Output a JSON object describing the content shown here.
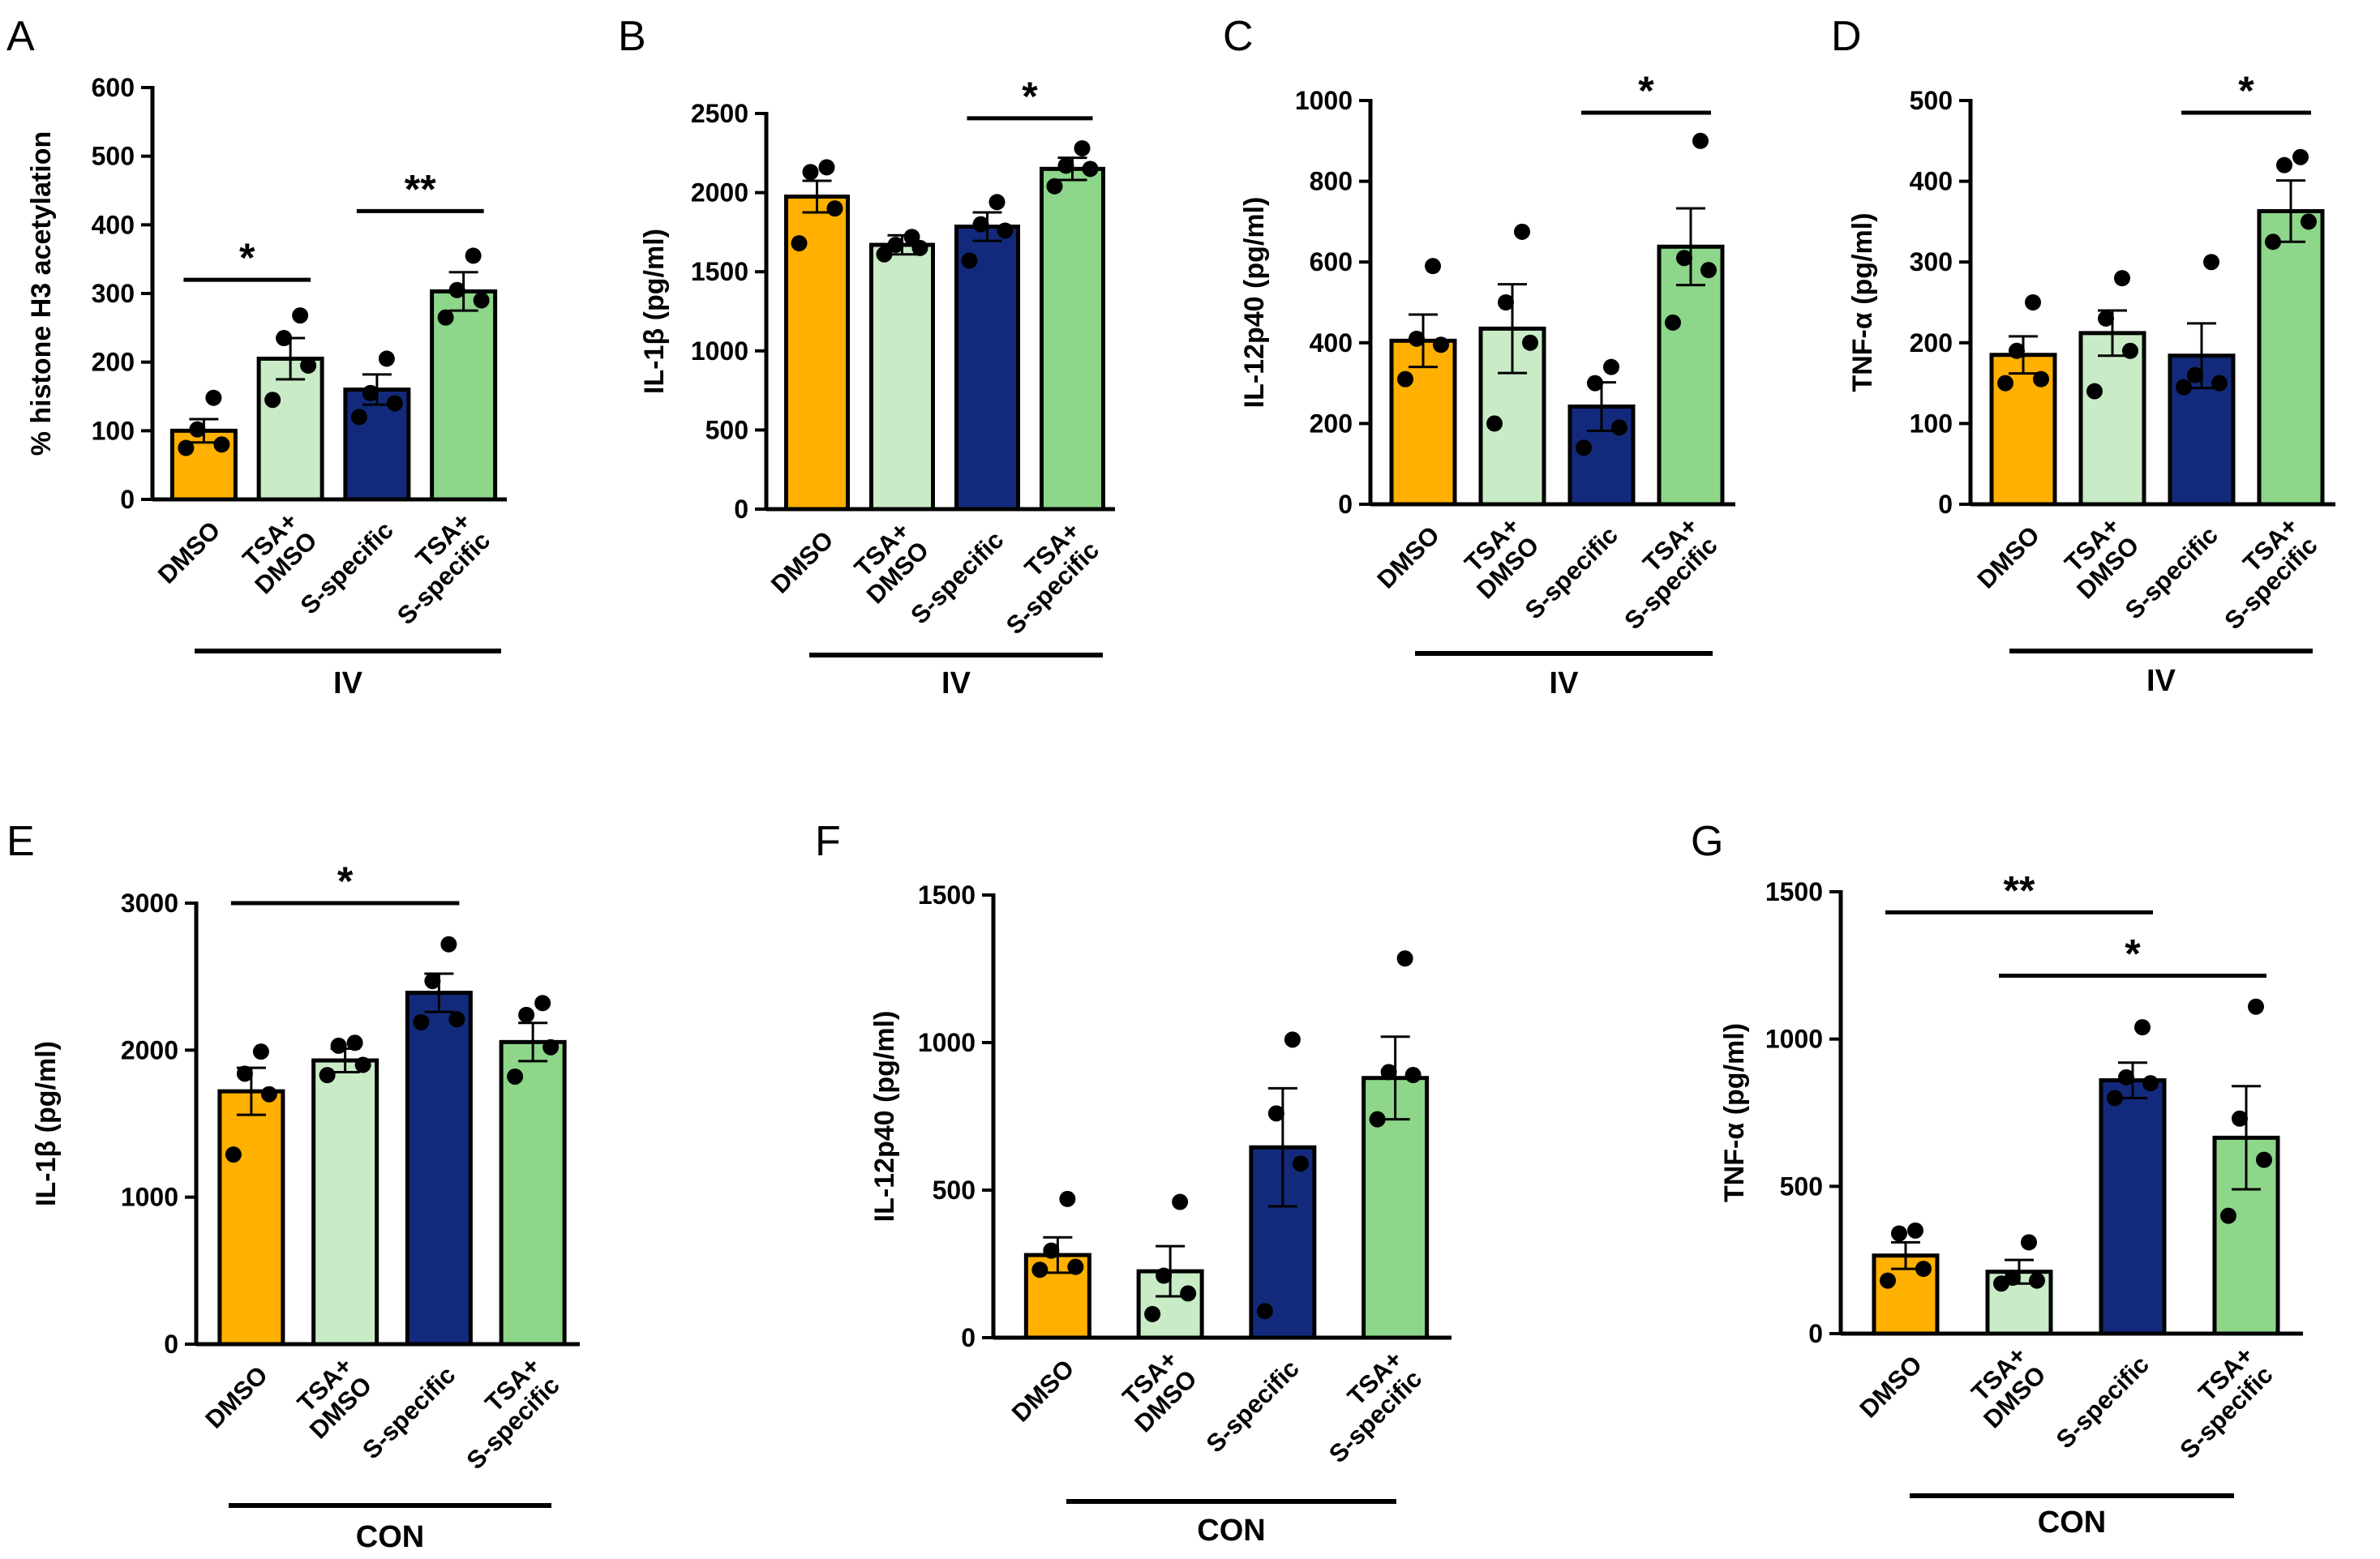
{
  "colors": {
    "DMSO": "#ffb000",
    "TSA_DMSO": "#c9ecc6",
    "S_specific": "#132a7c",
    "TSA_S_specific": "#8dd68a",
    "stroke": "#000000"
  },
  "chart_data": [
    {
      "panel": "A",
      "type": "bar",
      "group_label": "IV",
      "ylabel": "% histone H3 acetylation",
      "ylim": [
        0,
        600
      ],
      "yticks": [
        0,
        100,
        200,
        300,
        400,
        500,
        600
      ],
      "categories": [
        [
          "DMSO"
        ],
        [
          "TSA+",
          "DMSO"
        ],
        [
          "S-specific"
        ],
        [
          "TSA+",
          "S-specific"
        ]
      ],
      "values": [
        100,
        205,
        160,
        303
      ],
      "sem": [
        17,
        30,
        22,
        28
      ],
      "points": [
        [
          75,
          80,
          102,
          148
        ],
        [
          145,
          195,
          235,
          268
        ],
        [
          120,
          140,
          155,
          205
        ],
        [
          265,
          290,
          305,
          355
        ]
      ],
      "significance": [
        {
          "from": 0,
          "to": 1,
          "label": "*",
          "y": 320
        },
        {
          "from": 2,
          "to": 3,
          "label": "**",
          "y": 420
        }
      ]
    },
    {
      "panel": "B",
      "type": "bar",
      "group_label": "IV",
      "ylabel": "IL-1β (pg/ml)",
      "ylim": [
        0,
        2500
      ],
      "yticks": [
        0,
        500,
        1000,
        1500,
        2000,
        2500
      ],
      "categories": [
        [
          "DMSO"
        ],
        [
          "TSA+",
          "DMSO"
        ],
        [
          "S-specific"
        ],
        [
          "TSA+",
          "S-specific"
        ]
      ],
      "values": [
        1975,
        1670,
        1785,
        2150
      ],
      "sem": [
        100,
        60,
        90,
        70
      ],
      "points": [
        [
          1680,
          1900,
          2130,
          2160
        ],
        [
          1610,
          1650,
          1670,
          1720
        ],
        [
          1570,
          1760,
          1800,
          1940
        ],
        [
          2040,
          2150,
          2170,
          2280
        ]
      ],
      "significance": [
        {
          "from": 2,
          "to": 3,
          "label": "*",
          "y": 2470
        }
      ]
    },
    {
      "panel": "C",
      "type": "bar",
      "group_label": "IV",
      "ylabel": "IL-12p40 (pg/ml)",
      "ylim": [
        0,
        1000
      ],
      "yticks": [
        0,
        200,
        400,
        600,
        800,
        1000
      ],
      "categories": [
        [
          "DMSO"
        ],
        [
          "TSA+",
          "DMSO"
        ],
        [
          "S-specific"
        ],
        [
          "TSA+",
          "S-specific"
        ]
      ],
      "values": [
        405,
        435,
        242,
        638
      ],
      "sem": [
        65,
        110,
        60,
        95
      ],
      "points": [
        [
          310,
          395,
          410,
          590
        ],
        [
          200,
          400,
          500,
          675
        ],
        [
          140,
          190,
          300,
          340
        ],
        [
          450,
          580,
          610,
          900
        ]
      ],
      "significance": [
        {
          "from": 2,
          "to": 3,
          "label": "*",
          "y": 970
        }
      ]
    },
    {
      "panel": "D",
      "type": "bar",
      "group_label": "IV",
      "ylabel": "TNF-α (pg/ml)",
      "ylim": [
        0,
        500
      ],
      "yticks": [
        0,
        100,
        200,
        300,
        400,
        500
      ],
      "categories": [
        [
          "DMSO"
        ],
        [
          "TSA+",
          "DMSO"
        ],
        [
          "S-specific"
        ],
        [
          "TSA+",
          "S-specific"
        ]
      ],
      "values": [
        185,
        212,
        184,
        363
      ],
      "sem": [
        23,
        28,
        40,
        38
      ],
      "points": [
        [
          150,
          155,
          190,
          250
        ],
        [
          140,
          190,
          230,
          280
        ],
        [
          145,
          150,
          160,
          300
        ],
        [
          325,
          350,
          420,
          430
        ]
      ],
      "significance": [
        {
          "from": 2,
          "to": 3,
          "label": "*",
          "y": 485
        }
      ]
    },
    {
      "panel": "E",
      "type": "bar",
      "group_label": "CON",
      "ylabel": "IL-1β (pg/ml)",
      "ylim": [
        0,
        3000
      ],
      "yticks": [
        0,
        1000,
        2000,
        3000
      ],
      "categories": [
        [
          "DMSO"
        ],
        [
          "TSA+",
          "DMSO"
        ],
        [
          "S-specific"
        ],
        [
          "TSA+",
          "S-specific"
        ]
      ],
      "values": [
        1720,
        1930,
        2390,
        2055
      ],
      "sem": [
        160,
        80,
        130,
        130
      ],
      "points": [
        [
          1290,
          1700,
          1840,
          1990
        ],
        [
          1830,
          1900,
          2030,
          2050
        ],
        [
          2190,
          2210,
          2470,
          2720
        ],
        [
          1820,
          2020,
          2240,
          2320
        ]
      ],
      "significance": [
        {
          "from": 0,
          "to": 2,
          "label": "*",
          "y": 3000
        }
      ]
    },
    {
      "panel": "F",
      "type": "bar",
      "group_label": "CON",
      "ylabel": "IL-12p40 (pg/ml)",
      "ylim": [
        0,
        1500
      ],
      "yticks": [
        0,
        500,
        1000,
        1500
      ],
      "categories": [
        [
          "DMSO"
        ],
        [
          "TSA+",
          "DMSO"
        ],
        [
          "S-specific"
        ],
        [
          "TSA+",
          "S-specific"
        ]
      ],
      "values": [
        280,
        225,
        645,
        880
      ],
      "sem": [
        60,
        85,
        200,
        140
      ],
      "points": [
        [
          230,
          240,
          295,
          470
        ],
        [
          80,
          150,
          210,
          460
        ],
        [
          90,
          590,
          760,
          1010
        ],
        [
          740,
          890,
          900,
          1285
        ]
      ],
      "significance": []
    },
    {
      "panel": "G",
      "type": "bar",
      "group_label": "CON",
      "ylabel": "TNF-α (pg/ml)",
      "ylim": [
        0,
        1500
      ],
      "yticks": [
        0,
        500,
        1000,
        1500
      ],
      "categories": [
        [
          "DMSO"
        ],
        [
          "TSA+",
          "DMSO"
        ],
        [
          "S-specific"
        ],
        [
          "TSA+",
          "S-specific"
        ]
      ],
      "values": [
        265,
        210,
        860,
        665
      ],
      "sem": [
        45,
        40,
        60,
        175
      ],
      "points": [
        [
          180,
          220,
          340,
          350
        ],
        [
          170,
          180,
          190,
          310
        ],
        [
          800,
          850,
          870,
          1040
        ],
        [
          400,
          590,
          730,
          1110
        ]
      ],
      "significance": [
        {
          "from": 0,
          "to": 2,
          "label": "**",
          "y": 1430
        },
        {
          "from": 1,
          "to": 3,
          "label": "*",
          "y": 1215
        }
      ]
    }
  ]
}
